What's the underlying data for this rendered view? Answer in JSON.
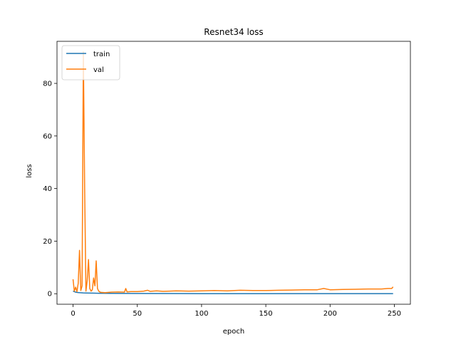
{
  "chart_data": {
    "type": "line",
    "title": "Resnet34 loss",
    "xlabel": "epoch",
    "ylabel": "loss",
    "xlim": [
      -12.5,
      262.5
    ],
    "ylim": [
      -4.0,
      96.0
    ],
    "xticks": [
      0,
      50,
      100,
      150,
      200,
      250
    ],
    "yticks": [
      0,
      20,
      40,
      60,
      80
    ],
    "legend_position": "top-left",
    "grid": false,
    "series": [
      {
        "name": "train",
        "color": "#1f77b4",
        "x": [
          0,
          1,
          2,
          3,
          4,
          5,
          6,
          8,
          10,
          15,
          20,
          30,
          50,
          100,
          150,
          200,
          249
        ],
        "y": [
          1.0,
          0.8,
          0.6,
          0.5,
          0.45,
          0.4,
          0.35,
          0.3,
          0.27,
          0.22,
          0.18,
          0.12,
          0.08,
          0.05,
          0.04,
          0.03,
          0.03
        ]
      },
      {
        "name": "val",
        "color": "#ff7f0e",
        "x": [
          0,
          1,
          2,
          3,
          4,
          5,
          6,
          7,
          8,
          9,
          10,
          11,
          12,
          13,
          14,
          15,
          16,
          17,
          18,
          19,
          20,
          21,
          22,
          25,
          30,
          35,
          40,
          41,
          42,
          45,
          50,
          55,
          58,
          60,
          65,
          70,
          75,
          80,
          90,
          100,
          110,
          120,
          130,
          140,
          150,
          160,
          170,
          180,
          190,
          195,
          200,
          210,
          220,
          230,
          240,
          245,
          248,
          249
        ],
        "y": [
          5.5,
          1.0,
          2.5,
          0.8,
          4.0,
          16.5,
          1.2,
          3.0,
          92.0,
          40.0,
          1.0,
          5.0,
          13.0,
          2.0,
          1.0,
          1.5,
          6.0,
          3.0,
          12.5,
          2.0,
          1.0,
          0.6,
          0.5,
          0.4,
          0.6,
          0.7,
          0.6,
          2.0,
          0.7,
          0.8,
          0.8,
          1.0,
          1.3,
          0.9,
          1.1,
          0.9,
          1.0,
          1.1,
          1.0,
          1.1,
          1.2,
          1.1,
          1.3,
          1.2,
          1.2,
          1.3,
          1.4,
          1.5,
          1.5,
          2.0,
          1.5,
          1.6,
          1.7,
          1.8,
          1.8,
          2.0,
          2.0,
          2.6
        ]
      }
    ]
  }
}
